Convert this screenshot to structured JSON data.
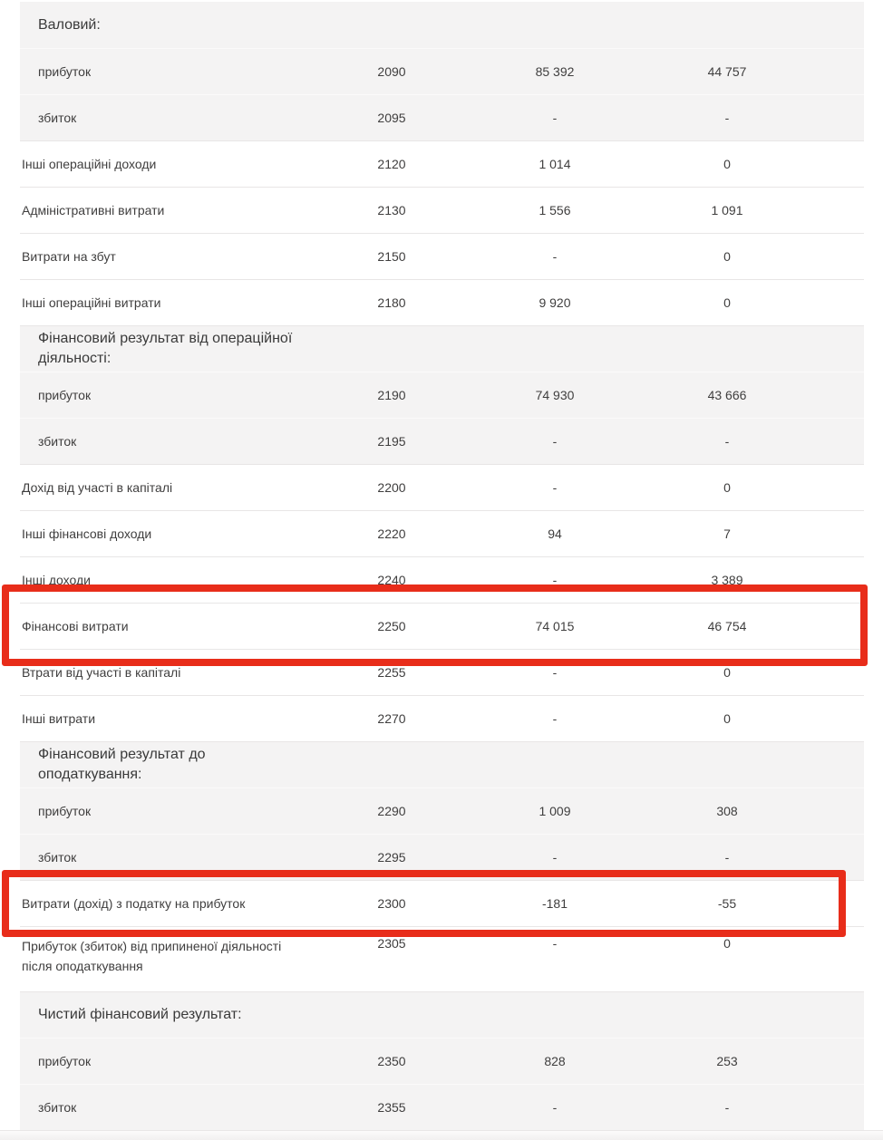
{
  "colors": {
    "highlight_red": "#e82d1a",
    "section_bg": "#f4f3f3",
    "text": "#3f3e3e"
  },
  "table": {
    "rows": [
      {
        "type": "section",
        "label": "Валовий:",
        "code": "",
        "value1": "",
        "value2": ""
      },
      {
        "type": "sub",
        "label": "прибуток",
        "code": "2090",
        "value1": "85 392",
        "value2": "44 757"
      },
      {
        "type": "sub",
        "label": "збиток",
        "code": "2095",
        "value1": "-",
        "value2": "-"
      },
      {
        "type": "item",
        "label": "Інші операційні доходи",
        "code": "2120",
        "value1": "1 014",
        "value2": "0"
      },
      {
        "type": "item",
        "label": "Адміністративні витрати",
        "code": "2130",
        "value1": "1 556",
        "value2": "1 091"
      },
      {
        "type": "item",
        "label": "Витрати на збут",
        "code": "2150",
        "value1": "-",
        "value2": "0"
      },
      {
        "type": "item",
        "label": "Інші операційні витрати",
        "code": "2180",
        "value1": "9 920",
        "value2": "0"
      },
      {
        "type": "section",
        "label": "Фінансовий результат від операційної діяльності:",
        "code": "",
        "value1": "",
        "value2": ""
      },
      {
        "type": "sub",
        "label": "прибуток",
        "code": "2190",
        "value1": "74 930",
        "value2": "43 666"
      },
      {
        "type": "sub",
        "label": "збиток",
        "code": "2195",
        "value1": "-",
        "value2": "-"
      },
      {
        "type": "item",
        "label": "Дохід від участі в капіталі",
        "code": "2200",
        "value1": "-",
        "value2": "0"
      },
      {
        "type": "item",
        "label": "Інші фінансові доходи",
        "code": "2220",
        "value1": "94",
        "value2": "7"
      },
      {
        "type": "item",
        "label": "Інші доходи",
        "code": "2240",
        "value1": "-",
        "value2": "3 389"
      },
      {
        "type": "item",
        "label": "Фінансові витрати",
        "code": "2250",
        "value1": "74 015",
        "value2": "46 754",
        "highlighted": true
      },
      {
        "type": "item",
        "label": "Втрати від участі в капіталі",
        "code": "2255",
        "value1": "-",
        "value2": "0"
      },
      {
        "type": "item",
        "label": "Інші витрати",
        "code": "2270",
        "value1": "-",
        "value2": "0"
      },
      {
        "type": "section",
        "label": "Фінансовий результат до оподаткування:",
        "code": "",
        "value1": "",
        "value2": ""
      },
      {
        "type": "sub",
        "label": "прибуток",
        "code": "2290",
        "value1": "1 009",
        "value2": "308"
      },
      {
        "type": "sub",
        "label": "збиток",
        "code": "2295",
        "value1": "-",
        "value2": "-"
      },
      {
        "type": "item",
        "label": "Витрати (дохід) з податку на прибуток",
        "code": "2300",
        "value1": "-181",
        "value2": "-55",
        "highlighted": true
      },
      {
        "type": "item",
        "label": "Прибуток (збиток) від припиненої діяльності після оподаткування",
        "code": "2305",
        "value1": "-",
        "value2": "0",
        "two_line": true
      },
      {
        "type": "section",
        "label": "Чистий фінансовий результат:",
        "code": "",
        "value1": "",
        "value2": ""
      },
      {
        "type": "sub",
        "label": "прибуток",
        "code": "2350",
        "value1": "828",
        "value2": "253"
      },
      {
        "type": "sub",
        "label": "збиток",
        "code": "2355",
        "value1": "-",
        "value2": "-"
      }
    ]
  }
}
